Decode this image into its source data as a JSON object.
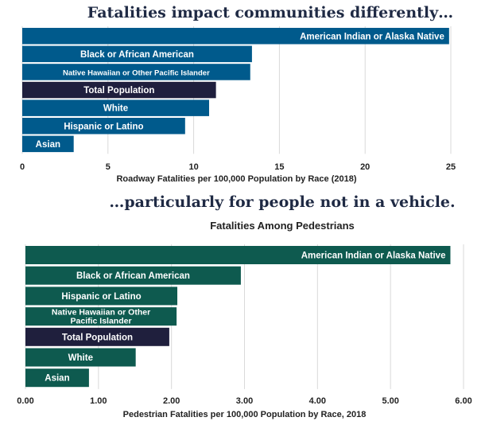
{
  "headline_top": "Fatalities impact communities differently…",
  "headline_bottom": "…particularly for people not in a vehicle.",
  "chart_data": [
    {
      "type": "bar",
      "orientation": "horizontal",
      "title": "",
      "xlabel": "Roadway Fatalities per 100,000 Population by Race (2018)",
      "ylabel": "",
      "categories": [
        "American Indian or Alaska Native",
        "Black or African American",
        "Native Hawaiian or Other Pacific Islander",
        "Total Population",
        "White",
        "Hispanic or Latino",
        "Asian"
      ],
      "values": [
        24.9,
        13.4,
        13.3,
        11.3,
        10.9,
        9.5,
        3.0
      ],
      "xlim": [
        0,
        25
      ],
      "xticks": [
        "0",
        "5",
        "10",
        "15",
        "20",
        "25"
      ],
      "grid": true,
      "colors": {
        "bar": "#005a8c",
        "total": "#1f1f3d"
      }
    },
    {
      "type": "bar",
      "orientation": "horizontal",
      "title": "Fatalities Among Pedestrians",
      "xlabel": "Pedestrian Fatalities per 100,000 Population by Race, 2018",
      "ylabel": "",
      "categories": [
        "American Indian or Alaska Native",
        "Black or African American",
        "Hispanic or Latino",
        "Native Hawaiian or Other Pacific Islander",
        "Total Population",
        "White",
        "Asian"
      ],
      "values": [
        5.82,
        2.95,
        2.08,
        2.07,
        1.97,
        1.51,
        0.87
      ],
      "xlim": [
        0,
        6
      ],
      "xticks": [
        "0.00",
        "1.00",
        "2.00",
        "3.00",
        "4.00",
        "5.00",
        "6.00"
      ],
      "grid": true,
      "colors": {
        "bar": "#0e5a4f",
        "total": "#1f1f3d"
      }
    }
  ]
}
